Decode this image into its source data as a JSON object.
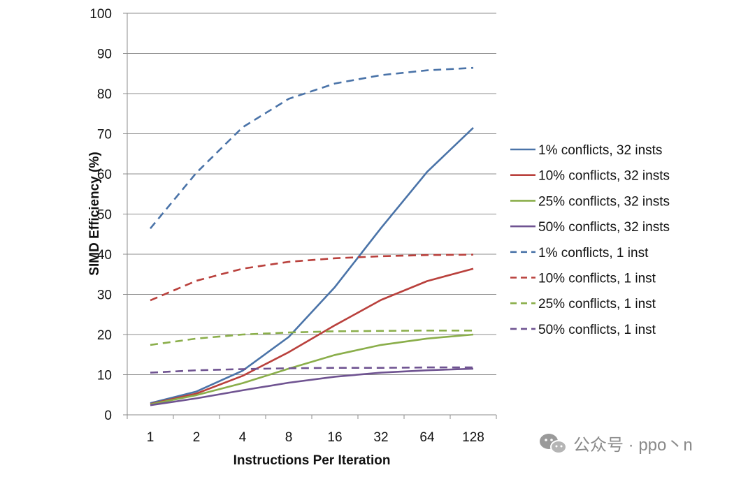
{
  "chart_data": {
    "type": "line",
    "title": "",
    "xlabel": "Instructions Per Iteration",
    "ylabel": "SIMD Efficiency (%)",
    "categories": [
      "1",
      "2",
      "4",
      "8",
      "16",
      "32",
      "64",
      "128"
    ],
    "ylim": [
      0,
      100
    ],
    "yticks": [
      0,
      10,
      20,
      30,
      40,
      50,
      60,
      70,
      80,
      90,
      100
    ],
    "grid": "horizontal",
    "legend_position": "right",
    "series": [
      {
        "name": "1% conflicts, 32 insts",
        "color": "#4a73a8",
        "dash": "solid",
        "values": [
          2.9,
          5.8,
          11.0,
          19.4,
          31.8,
          46.5,
          60.5,
          71.5
        ]
      },
      {
        "name": "10% conflicts, 32 insts",
        "color": "#b9403c",
        "dash": "solid",
        "values": [
          2.7,
          5.3,
          9.7,
          15.6,
          22.3,
          28.6,
          33.3,
          36.4
        ]
      },
      {
        "name": "25% conflicts, 32 insts",
        "color": "#8aae4a",
        "dash": "solid",
        "values": [
          2.6,
          4.9,
          7.9,
          11.5,
          14.9,
          17.4,
          19.0,
          20.0
        ]
      },
      {
        "name": "50% conflicts, 32 insts",
        "color": "#6f5391",
        "dash": "solid",
        "values": [
          2.4,
          4.1,
          6.1,
          8.0,
          9.5,
          10.5,
          11.1,
          11.5
        ]
      },
      {
        "name": "1% conflicts, 1 inst",
        "color": "#4a73a8",
        "dash": "dashed",
        "values": [
          46.4,
          60.3,
          71.6,
          78.7,
          82.5,
          84.6,
          85.8,
          86.4
        ]
      },
      {
        "name": "10% conflicts, 1 inst",
        "color": "#b9403c",
        "dash": "dashed",
        "values": [
          28.5,
          33.4,
          36.4,
          38.1,
          39.0,
          39.5,
          39.8,
          39.9
        ]
      },
      {
        "name": "25% conflicts, 1 inst",
        "color": "#8aae4a",
        "dash": "dashed",
        "values": [
          17.4,
          19.0,
          20.0,
          20.5,
          20.8,
          20.9,
          21.0,
          21.0
        ]
      },
      {
        "name": "50% conflicts, 1 inst",
        "color": "#6f5391",
        "dash": "dashed",
        "values": [
          10.5,
          11.1,
          11.4,
          11.6,
          11.7,
          11.7,
          11.8,
          11.8
        ]
      }
    ]
  },
  "watermark": {
    "text": "公众号 · ppo丶n",
    "icon": "wechat-icon"
  }
}
